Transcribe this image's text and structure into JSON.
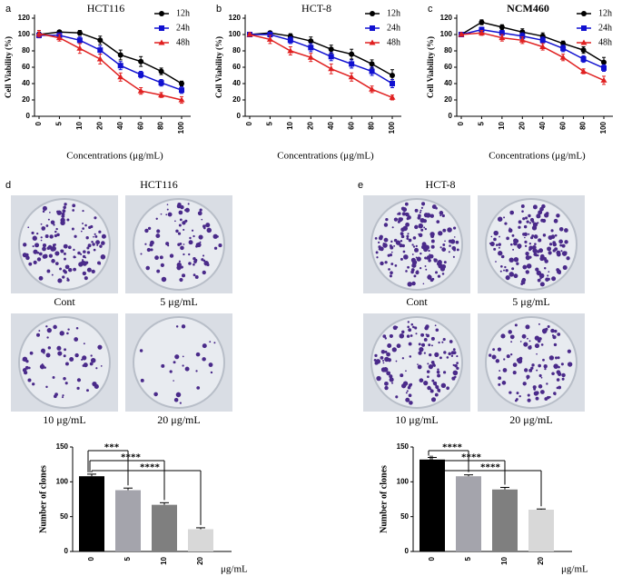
{
  "chart_data": [
    {
      "type": "line",
      "panel": "a",
      "title": "HCT116",
      "xlabel": "Concentrations (μg/mL)",
      "ylabel": "Cell Viability (%)",
      "categories": [
        "0",
        "5",
        "10",
        "20",
        "40",
        "60",
        "80",
        "100"
      ],
      "ylim": [
        0,
        120
      ],
      "yticks": [
        0,
        20,
        40,
        60,
        80,
        100,
        120
      ],
      "series": [
        {
          "name": "12h",
          "color": "#000000",
          "values": [
            100,
            103,
            102,
            93,
            75,
            67,
            55,
            40
          ],
          "errors": [
            3,
            2,
            3,
            5,
            6,
            6,
            4,
            3
          ]
        },
        {
          "name": "24h",
          "color": "#1010d0",
          "values": [
            99,
            99,
            93,
            81,
            62,
            51,
            41,
            32
          ],
          "errors": [
            3,
            3,
            4,
            5,
            5,
            4,
            4,
            4
          ]
        },
        {
          "name": "48h",
          "color": "#e02020",
          "values": [
            101,
            96,
            83,
            70,
            48,
            31,
            26,
            20
          ],
          "errors": [
            4,
            4,
            6,
            6,
            5,
            4,
            3,
            4
          ]
        }
      ]
    },
    {
      "type": "line",
      "panel": "b",
      "title": "HCT-8",
      "xlabel": "Concentrations (μg/mL)",
      "ylabel": "Cell Viability (%)",
      "categories": [
        "0",
        "5",
        "10",
        "20",
        "40",
        "60",
        "80",
        "100"
      ],
      "ylim": [
        0,
        120
      ],
      "yticks": [
        0,
        20,
        40,
        60,
        80,
        100,
        120
      ],
      "series": [
        {
          "name": "12h",
          "color": "#000000",
          "values": [
            100,
            102,
            98,
            92,
            82,
            76,
            64,
            50
          ],
          "errors": [
            2,
            2,
            3,
            5,
            5,
            6,
            5,
            7
          ]
        },
        {
          "name": "24h",
          "color": "#1010d0",
          "values": [
            100,
            100,
            93,
            84,
            73,
            64,
            55,
            40
          ],
          "errors": [
            2,
            3,
            4,
            5,
            5,
            5,
            5,
            5
          ]
        },
        {
          "name": "48h",
          "color": "#e02020",
          "values": [
            100,
            94,
            80,
            72,
            58,
            48,
            33,
            23
          ],
          "errors": [
            2,
            5,
            5,
            5,
            6,
            5,
            4,
            3
          ]
        }
      ]
    },
    {
      "type": "line",
      "panel": "c",
      "title": "NCM460",
      "xlabel": "Concentrations (μg/mL)",
      "ylabel": "Cell Viability (%)",
      "categories": [
        "0",
        "5",
        "10",
        "20",
        "40",
        "60",
        "80",
        "100"
      ],
      "ylim": [
        0,
        120
      ],
      "yticks": [
        0,
        20,
        40,
        60,
        80,
        100,
        120
      ],
      "series": [
        {
          "name": "12h",
          "color": "#000000",
          "values": [
            100,
            115,
            109,
            103,
            98,
            89,
            81,
            66
          ],
          "errors": [
            2,
            3,
            3,
            4,
            4,
            3,
            4,
            6
          ]
        },
        {
          "name": "24h",
          "color": "#1010d0",
          "values": [
            100,
            106,
            102,
            98,
            93,
            83,
            70,
            59
          ],
          "errors": [
            2,
            3,
            3,
            4,
            4,
            4,
            4,
            4
          ]
        },
        {
          "name": "48h",
          "color": "#e02020",
          "values": [
            100,
            102,
            96,
            93,
            85,
            72,
            55,
            44
          ],
          "errors": [
            2,
            3,
            4,
            4,
            4,
            4,
            3,
            5
          ]
        }
      ]
    },
    {
      "type": "bar",
      "panel": "d",
      "ylabel": "Number of clones",
      "unit": "μg/mL",
      "categories": [
        "0",
        "5",
        "10",
        "20"
      ],
      "values": [
        108,
        88,
        67,
        32
      ],
      "errors": [
        3,
        3,
        3,
        2
      ],
      "colors": [
        "#000000",
        "#a4a4ac",
        "#7f7f7f",
        "#d8d8d8"
      ],
      "ylim": [
        0,
        150
      ],
      "yticks": [
        0,
        50,
        100,
        150
      ],
      "annotations": [
        "***",
        "****",
        "****"
      ]
    },
    {
      "type": "bar",
      "panel": "e",
      "ylabel": "Number of clones",
      "unit": "μg/mL",
      "categories": [
        "0",
        "5",
        "10",
        "20"
      ],
      "values": [
        132,
        108,
        89,
        60
      ],
      "errors": [
        3,
        2,
        3,
        1
      ],
      "colors": [
        "#000000",
        "#a4a4ac",
        "#7f7f7f",
        "#d8d8d8"
      ],
      "ylim": [
        0,
        150
      ],
      "yticks": [
        0,
        50,
        100,
        150
      ],
      "annotations": [
        "****",
        "****",
        "****"
      ]
    }
  ],
  "photos": {
    "d": {
      "title": "HCT116",
      "labels": [
        "Cont",
        "5 μg/mL",
        "10 μg/mL",
        "20 μg/mL"
      ]
    },
    "e": {
      "title": "HCT-8",
      "labels": [
        "Cont",
        "5 μg/mL",
        "10 μg/mL",
        "20 μg/mL"
      ]
    }
  }
}
